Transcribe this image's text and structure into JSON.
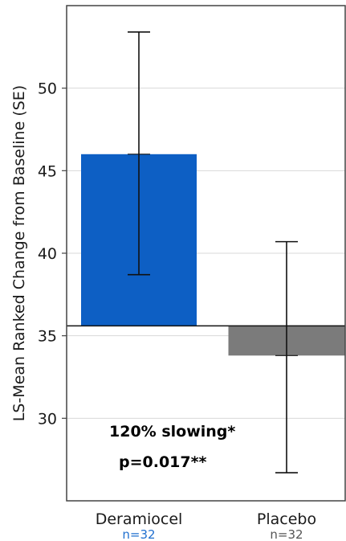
{
  "chart_data": {
    "type": "bar",
    "ylabel": "LS-Mean Ranked Change from Baseline (SE)",
    "ylim": [
      25,
      55
    ],
    "yticks": [
      30,
      35,
      40,
      45,
      50
    ],
    "baseline": 35.6,
    "grid": true,
    "categories": [
      "Deramiocel",
      "Placebo"
    ],
    "sample_sizes": [
      "n=32",
      "n=32"
    ],
    "values": [
      46.0,
      33.8
    ],
    "error_low": [
      38.7,
      26.7
    ],
    "error_high": [
      53.4,
      40.7
    ],
    "bar_colors": [
      "#0d5fc4",
      "#7b7b7b"
    ],
    "n_label_colors": [
      "#1f6fcf",
      "#555555"
    ],
    "annotations": [
      "120% slowing*",
      "p=0.017**"
    ]
  }
}
